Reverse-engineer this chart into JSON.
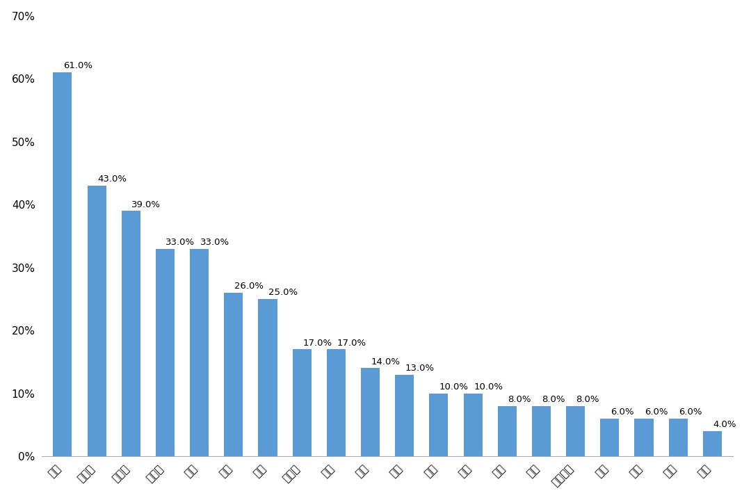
{
  "categories": [
    "跑步",
    "健步走",
    "羽毛球",
    "乒乓球",
    "游泳",
    "骑行",
    "篮球",
    "广场舞",
    "操课",
    "太极",
    "足球",
    "网球",
    "瑜伽",
    "台球",
    "登山",
    "力量训练",
    "排球",
    "滑冰",
    "钓鱼",
    "滑雪"
  ],
  "values": [
    0.61,
    0.43,
    0.39,
    0.33,
    0.33,
    0.26,
    0.25,
    0.17,
    0.17,
    0.14,
    0.13,
    0.1,
    0.1,
    0.08,
    0.08,
    0.08,
    0.06,
    0.06,
    0.06,
    0.04
  ],
  "labels": [
    "61.0%",
    "43.0%",
    "39.0%",
    "33.0%",
    "33.0%",
    "26.0%",
    "25.0%",
    "17.0%",
    "17.0%",
    "14.0%",
    "13.0%",
    "10.0%",
    "10.0%",
    "8.0%",
    "8.0%",
    "8.0%",
    "6.0%",
    "6.0%",
    "6.0%",
    "4.0%"
  ],
  "bar_color": "#5B9BD5",
  "background_color": "#FFFFFF",
  "ylim": [
    0,
    0.7
  ],
  "yticks": [
    0.0,
    0.1,
    0.2,
    0.3,
    0.4,
    0.5,
    0.6,
    0.7
  ],
  "ytick_labels": [
    "0%",
    "10%",
    "20%",
    "30%",
    "40%",
    "50%",
    "60%",
    "70%"
  ],
  "label_fontsize": 9.5,
  "tick_fontsize": 11,
  "bar_width": 0.55
}
